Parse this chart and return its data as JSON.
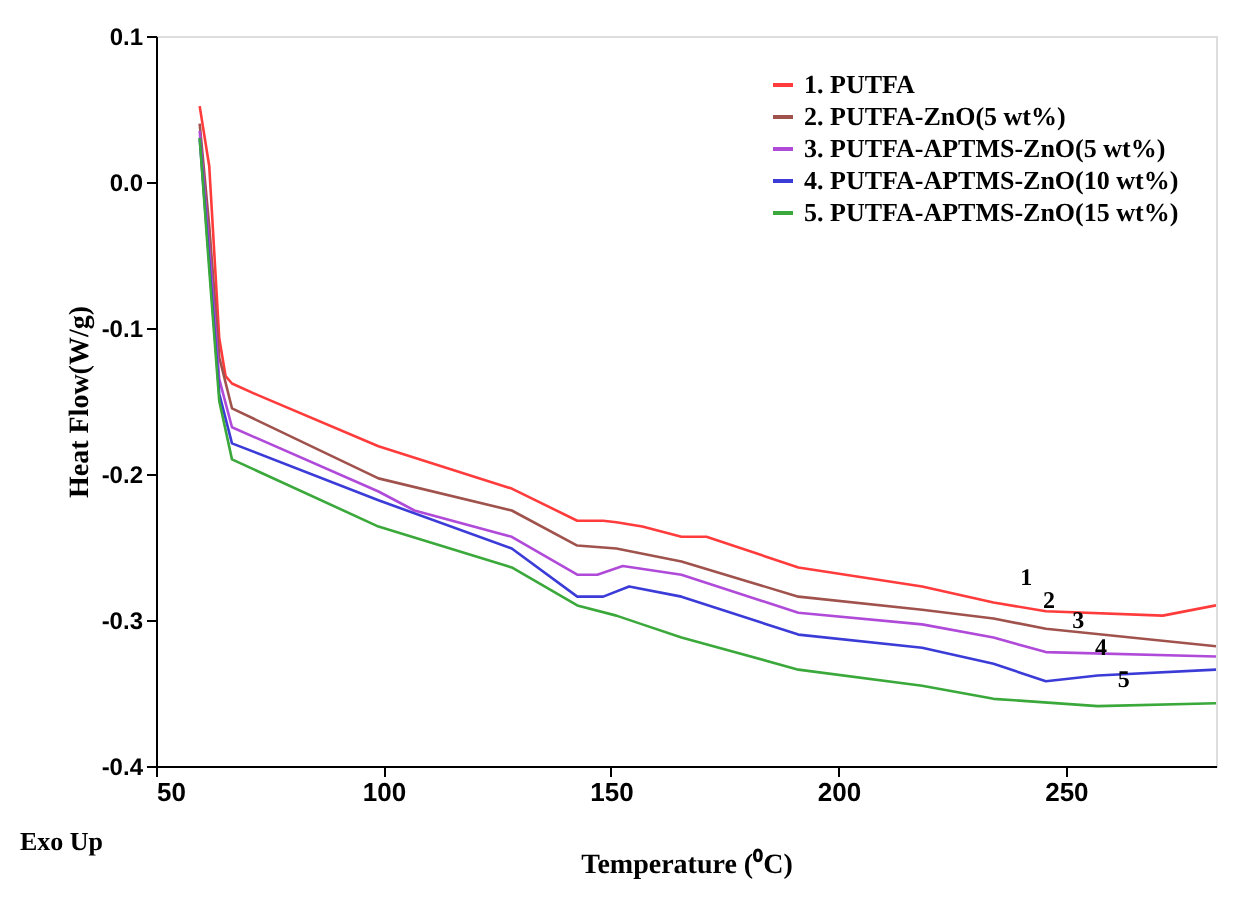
{
  "chart_data": {
    "type": "line",
    "xlabel": "Temperature (⁰C)",
    "ylabel": "Heat Flow(W/g)",
    "xlim": [
      50,
      283
    ],
    "ylim": [
      -0.4,
      0.1
    ],
    "xticks": [
      50,
      100,
      150,
      200,
      250
    ],
    "yticks": [
      -0.4,
      -0.3,
      -0.2,
      -0.1,
      {
        "value": 0,
        "label": "0.0"
      },
      0.1
    ],
    "grid": false,
    "legend": "top right",
    "marker": "none",
    "line_style": "solid",
    "series": [
      {
        "name": "1. PUTFA",
        "color": "#ff3b3b",
        "x": [
          59.6,
          61.7,
          63.9,
          65.3,
          66.7,
          72.4,
          98.9,
          128.2,
          142.6,
          148.3,
          151.2,
          156.9,
          165.5,
          171,
          191.2,
          218.4,
          234.1,
          245.6,
          271.3,
          283
        ],
        "values": [
          0.052,
          0.011,
          -0.107,
          -0.133,
          -0.138,
          -0.146,
          -0.181,
          -0.21,
          -0.232,
          -0.232,
          -0.233,
          -0.236,
          -0.243,
          -0.243,
          -0.264,
          -0.277,
          -0.288,
          -0.294,
          -0.297,
          -0.29
        ]
      },
      {
        "name": "2. PUTFA-ZnO(5 wt%)",
        "color": "#a0524d",
        "x": [
          59.6,
          61.7,
          63.9,
          66.7,
          98.9,
          128.2,
          142.6,
          151.2,
          165.5,
          191.2,
          218.4,
          234.1,
          245.6,
          283
        ],
        "values": [
          0.04,
          -0.03,
          -0.12,
          -0.155,
          -0.203,
          -0.225,
          -0.249,
          -0.251,
          -0.26,
          -0.284,
          -0.293,
          -0.299,
          -0.306,
          -0.318
        ]
      },
      {
        "name": "3. PUTFA-APTMS-ZnO(5 wt%)",
        "color": "#b04ad8",
        "x": [
          59.6,
          61.7,
          63.9,
          66.7,
          98.9,
          106.8,
          128.2,
          142.6,
          147,
          152.6,
          165.5,
          191.2,
          218.4,
          234.1,
          245.6,
          283
        ],
        "values": [
          0.035,
          -0.045,
          -0.135,
          -0.168,
          -0.212,
          -0.225,
          -0.243,
          -0.269,
          -0.269,
          -0.263,
          -0.269,
          -0.295,
          -0.303,
          -0.312,
          -0.322,
          -0.325
        ]
      },
      {
        "name": "4. PUTFA-APTMS-ZnO(10 wt%)",
        "color": "#3b3bd8",
        "x": [
          59.6,
          61.7,
          63.9,
          66.7,
          98.9,
          128.2,
          142.6,
          148.3,
          154,
          165.5,
          191.2,
          218.4,
          234.1,
          245.6,
          257,
          283
        ],
        "values": [
          0.03,
          -0.055,
          -0.145,
          -0.179,
          -0.218,
          -0.251,
          -0.284,
          -0.284,
          -0.277,
          -0.284,
          -0.31,
          -0.319,
          -0.33,
          -0.342,
          -0.338,
          -0.334
        ]
      },
      {
        "name": "5. PUTFA-APTMS-ZnO(15 wt%)",
        "color": "#3aa83a",
        "x": [
          59.6,
          61.7,
          63.9,
          66.7,
          98.9,
          128.2,
          142.6,
          151.2,
          156.9,
          165.5,
          191.2,
          218.4,
          234.1,
          257,
          283
        ],
        "values": [
          0.03,
          -0.06,
          -0.15,
          -0.19,
          -0.236,
          -0.264,
          -0.29,
          -0.297,
          -0.303,
          -0.312,
          -0.334,
          -0.345,
          -0.354,
          -0.359,
          -0.357
        ]
      }
    ],
    "annotations": [
      {
        "text": "1",
        "x": 241.3,
        "y": -0.284
      },
      {
        "text": "2",
        "x": 246.3,
        "y": -0.3
      },
      {
        "text": "3",
        "x": 252.7,
        "y": -0.314
      },
      {
        "text": "4",
        "x": 257.7,
        "y": -0.332
      },
      {
        "text": "5",
        "x": 262.7,
        "y": -0.354
      },
      "Exo Up"
    ]
  }
}
